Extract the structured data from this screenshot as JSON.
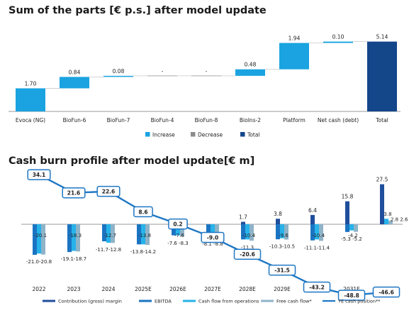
{
  "chart_data": [
    {
      "type": "waterfall",
      "title": "Sum of the parts [€ p.s.] after model update",
      "categories": [
        "Evoca (NG)",
        "BioFun-6",
        "BioFun-7",
        "BioFun-4",
        "BioFun-8",
        "BioIns-2",
        "Platform",
        "Net cash (debt)",
        "Total"
      ],
      "values": [
        1.7,
        0.84,
        0.08,
        0,
        0,
        0.48,
        1.94,
        0.1,
        5.14
      ],
      "labels": [
        "1.70",
        "0.84",
        "0.08",
        "-",
        "-",
        "0.48",
        "1.94",
        "0.10",
        "5.14"
      ],
      "kinds": [
        "increase",
        "increase",
        "increase",
        "increase",
        "increase",
        "increase",
        "increase",
        "increase",
        "total"
      ],
      "legend": [
        {
          "name": "Increase",
          "color": "#1aa3e0"
        },
        {
          "name": "Decrease",
          "color": "#8c8c8c"
        },
        {
          "name": "Total",
          "color": "#14468a"
        }
      ],
      "legend_position": "bottom"
    },
    {
      "type": "bar+line",
      "title": "Cash burn profile after model update[€ m]",
      "categories": [
        "2022",
        "2023",
        "2024",
        "2025E",
        "2026E",
        "2027E",
        "2028E",
        "2029E",
        "2030E",
        "2031E",
        "2032E"
      ],
      "series": [
        {
          "name": "Contribution (gross) margin",
          "color": "#1f4e9c",
          "values": [
            null,
            null,
            null,
            null,
            null,
            null,
            1.7,
            3.8,
            6.4,
            15.8,
            27.5
          ]
        },
        {
          "name": "EBITDA",
          "color": "#1b74c2",
          "values": [
            -21.0,
            -19.1,
            -11.7,
            -13.8,
            -7.6,
            -8.1,
            -10.4,
            -10.3,
            -11.1,
            -5.3,
            2.8
          ]
        },
        {
          "name": "Cash flow from operations",
          "color": "#27b3ea",
          "values": [
            -20.1,
            -18.3,
            -12.7,
            -13.8,
            -7.6,
            -9.0,
            -10.4,
            -9.6,
            -10.4,
            -4.2,
            3.8
          ]
        },
        {
          "name": "Free cash flow*",
          "color": "#8fb3c8",
          "values": [
            -20.8,
            -18.7,
            -12.8,
            -14.2,
            -8.3,
            -8.8,
            -11.3,
            -10.5,
            -11.4,
            -5.2,
            2.6
          ]
        },
        {
          "name": "YE cash position**",
          "color": "#1f77c4",
          "type": "line",
          "values": [
            34.1,
            21.6,
            22.6,
            8.6,
            0.2,
            -9.0,
            -20.6,
            -31.5,
            -43.2,
            -48.8,
            -46.6
          ]
        }
      ],
      "bar_labels": {
        "contribution": [
          "",
          "",
          "",
          "",
          "",
          "",
          "1.7",
          "3.8",
          "6.4",
          "15.8",
          "27.5"
        ],
        "cfo": [
          "-20.1",
          "-18.3",
          "-12.7",
          "-13.8",
          "-7.6",
          "",
          "-10.4",
          "-9.6",
          "-10.4",
          "-4.2",
          "3.8"
        ],
        "lower": [
          "-21.0-20.8",
          "-19.1-18.7",
          "-11.7-12.8",
          "-13.8-14.2",
          "-7.6 -8.3",
          "-8.1 -8.8",
          "-11.3",
          "-10.3-10.5",
          "-11.1-11.4",
          "-5.3 -5.2",
          ""
        ],
        "upper_right": [
          "",
          "",
          "",
          "",
          "",
          "",
          "",
          "",
          "",
          "",
          "2.8 2.6"
        ]
      },
      "line_labels": [
        "34.1",
        "21.6",
        "22.6",
        "8.6",
        "0.2",
        "-9.0",
        "-20.6",
        "-31.5",
        "-43.2",
        "-48.8",
        "-46.6"
      ],
      "ylim": [
        -55,
        35
      ],
      "legend_position": "bottom"
    }
  ]
}
